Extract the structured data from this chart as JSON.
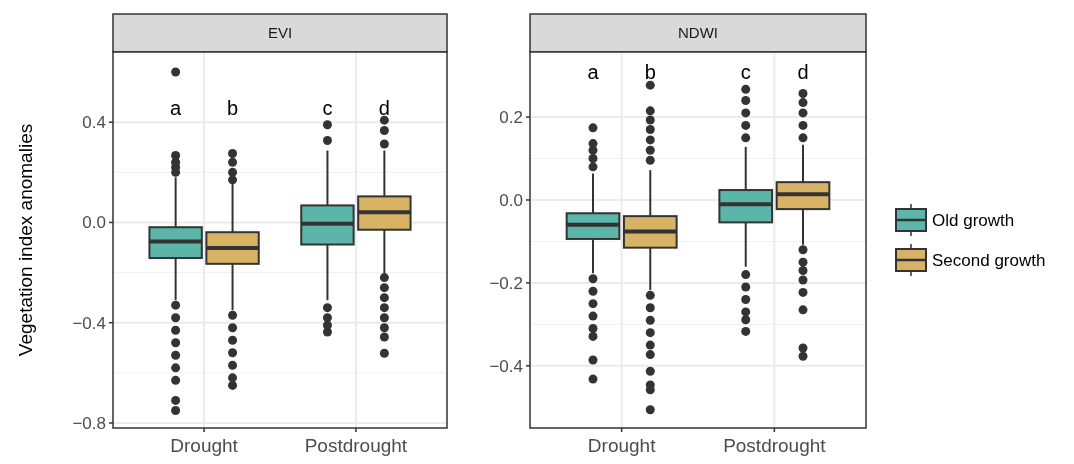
{
  "chart_data": [
    {
      "type": "box",
      "title": "EVI",
      "ylabel": "Vegetation index anomalies",
      "categories": [
        "Drought",
        "Postdrought"
      ],
      "ylim": [
        -0.82,
        0.68
      ],
      "yticks": [
        {
          "value": -0.8,
          "label": "−0.8"
        },
        {
          "value": -0.4,
          "label": "−0.4"
        },
        {
          "value": 0,
          "label": "0.0"
        },
        0.4
      ],
      "grid": true,
      "series": [
        {
          "color": "#5bb5a9",
          "boxes": [
            {
              "low": -0.31,
              "q1": -0.142,
              "median": -0.076,
              "q3": -0.019,
              "high": 0.18,
              "outliers": [
                0.6,
                0.267,
                0.24,
                0.22,
                0.2,
                -0.33,
                -0.38,
                -0.43,
                -0.48,
                -0.53,
                -0.58,
                -0.63,
                -0.71,
                -0.75
              ]
            },
            {
              "low": -0.31,
              "q1": -0.088,
              "median": -0.005,
              "q3": 0.068,
              "high": 0.287,
              "outliers": [
                0.327,
                0.39,
                -0.34,
                -0.38,
                -0.41,
                -0.437
              ]
            }
          ]
        },
        {
          "color": "#d9b365",
          "boxes": [
            {
              "low": -0.35,
              "q1": -0.165,
              "median": -0.102,
              "q3": -0.039,
              "high": 0.155,
              "outliers": [
                0.275,
                0.24,
                0.2,
                0.17,
                -0.37,
                -0.42,
                -0.47,
                -0.52,
                -0.57,
                -0.62,
                -0.65
              ]
            },
            {
              "low": -0.204,
              "q1": -0.029,
              "median": 0.041,
              "q3": 0.104,
              "high": 0.287,
              "outliers": [
                0.313,
                0.367,
                0.408,
                -0.22,
                -0.26,
                -0.3,
                -0.34,
                -0.38,
                -0.42,
                -0.457,
                -0.522
              ]
            }
          ]
        }
      ],
      "annotations": [
        "a",
        "b",
        "c",
        "d"
      ]
    },
    {
      "type": "box",
      "title": "NDWI",
      "categories": [
        "Drought",
        "Postdrought"
      ],
      "ylim": [
        -0.55,
        0.357
      ],
      "yticks": [
        {
          "value": -0.4,
          "label": "−0.4"
        },
        {
          "value": -0.2,
          "label": "−0.2"
        },
        {
          "value": 0,
          "label": "0.0"
        },
        0.2
      ],
      "grid": true,
      "legend": "right",
      "series": [
        {
          "name": "Old growth",
          "color": "#5bb5a9",
          "boxes": [
            {
              "low": -0.177,
              "q1": -0.094,
              "median": -0.06,
              "q3": -0.032,
              "high": 0.064,
              "outliers": [
                0.08,
                0.1,
                0.12,
                0.136,
                0.174,
                -0.19,
                -0.22,
                -0.25,
                -0.28,
                -0.31,
                -0.329,
                -0.386,
                -0.432
              ]
            },
            {
              "low": -0.161,
              "q1": -0.054,
              "median": -0.01,
              "q3": 0.024,
              "high": 0.128,
              "outliers": [
                0.15,
                0.18,
                0.21,
                0.24,
                0.267,
                -0.18,
                -0.21,
                -0.24,
                -0.27,
                -0.289,
                -0.317
              ]
            }
          ]
        },
        {
          "name": "Second growth",
          "color": "#d9b365",
          "boxes": [
            {
              "low": -0.217,
              "q1": -0.115,
              "median": -0.076,
              "q3": -0.039,
              "high": 0.072,
              "outliers": [
                0.096,
                0.12,
                0.145,
                0.17,
                0.193,
                0.215,
                0.277,
                -0.23,
                -0.26,
                -0.29,
                -0.32,
                -0.35,
                -0.373,
                -0.413,
                -0.446,
                -0.458,
                -0.506
              ]
            },
            {
              "low": -0.108,
              "q1": -0.022,
              "median": 0.014,
              "q3": 0.043,
              "high": 0.133,
              "outliers": [
                0.15,
                0.18,
                0.21,
                0.235,
                0.257,
                -0.12,
                -0.15,
                -0.17,
                -0.193,
                -0.223,
                -0.265,
                -0.357,
                -0.377
              ]
            }
          ]
        }
      ],
      "annotations": [
        "a",
        "b",
        "c",
        "d"
      ]
    }
  ]
}
